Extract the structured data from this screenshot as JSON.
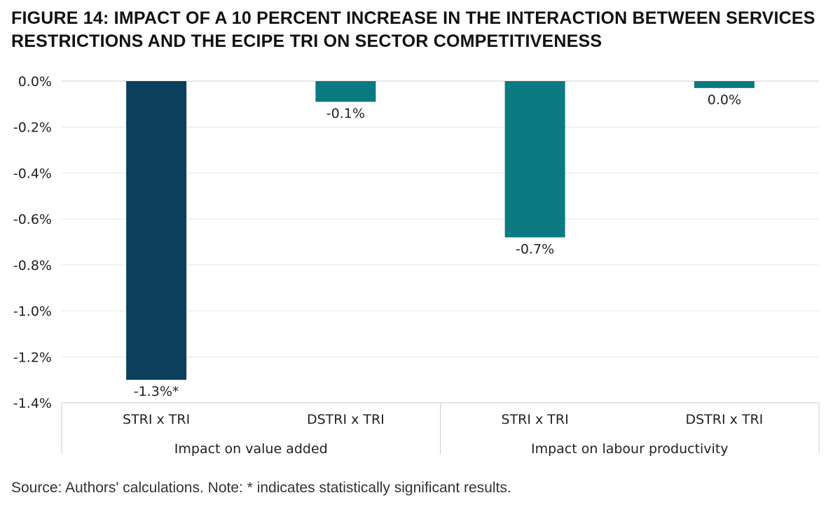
{
  "title": "FIGURE 14: IMPACT OF A 10 PERCENT INCREASE IN THE INTERACTION BETWEEN SERVICES RESTRICTIONS AND THE ECIPE TRI ON SECTOR COMPETITIVENESS",
  "source": "Source: Authors' calculations. Note: * indicates statistically significant results.",
  "colors": {
    "dark_bar": "#0b3f5c",
    "teal_bar": "#0a7a80"
  },
  "chart_data": {
    "type": "bar",
    "ylim": [
      -1.4,
      0.0
    ],
    "yticks": [
      {
        "value": 0.0,
        "label": "0.0%"
      },
      {
        "value": -0.2,
        "label": "-0.2%"
      },
      {
        "value": -0.4,
        "label": "-0.4%"
      },
      {
        "value": -0.6,
        "label": "-0.6%"
      },
      {
        "value": -0.8,
        "label": "-0.8%"
      },
      {
        "value": -1.0,
        "label": "-1.0%"
      },
      {
        "value": -1.2,
        "label": "-1.2%"
      },
      {
        "value": -1.4,
        "label": "-1.4%"
      }
    ],
    "grid": true,
    "groups": [
      "Impact on value added",
      "Impact on labour productivity"
    ],
    "bars": [
      {
        "group": 0,
        "category": "STRI x TRI",
        "value": -1.3,
        "label": "-1.3%*",
        "color": "#0b3f5c"
      },
      {
        "group": 0,
        "category": "DSTRI x TRI",
        "value": -0.09,
        "label": "-0.1%",
        "color": "#0a7a80"
      },
      {
        "group": 1,
        "category": "STRI x TRI",
        "value": -0.68,
        "label": "-0.7%",
        "color": "#0a7a80"
      },
      {
        "group": 1,
        "category": "DSTRI x TRI",
        "value": -0.03,
        "label": "0.0%",
        "color": "#0a7a80"
      }
    ]
  }
}
